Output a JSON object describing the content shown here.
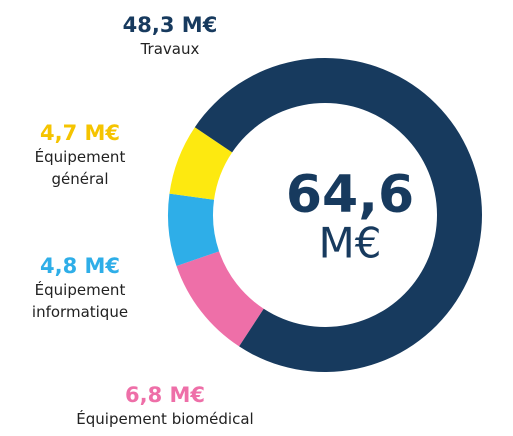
{
  "chart_data": {
    "type": "donut",
    "center_label": "64,6",
    "center_unit": "M€",
    "series": [
      {
        "name": "Travaux",
        "color": "#173a5e",
        "label_color": "#173a5e",
        "values": [
          48.3
        ],
        "value_labels": [
          "48,3 M€"
        ]
      },
      {
        "name": "Équipement général",
        "color": "#fde910",
        "label_color": "#f5c400",
        "values": [
          4.7
        ],
        "value_labels": [
          "4,7 M€"
        ]
      },
      {
        "name": "Équipement informatique",
        "color": "#2eaee8",
        "label_color": "#2eaee8",
        "values": [
          4.8
        ],
        "value_labels": [
          "4,8 M€"
        ]
      },
      {
        "name": "Équipement biomédical",
        "color": "#ee6fa8",
        "label_color": "#ee6fa8",
        "values": [
          6.8
        ],
        "value_labels": [
          "6,8 M€"
        ]
      }
    ]
  }
}
